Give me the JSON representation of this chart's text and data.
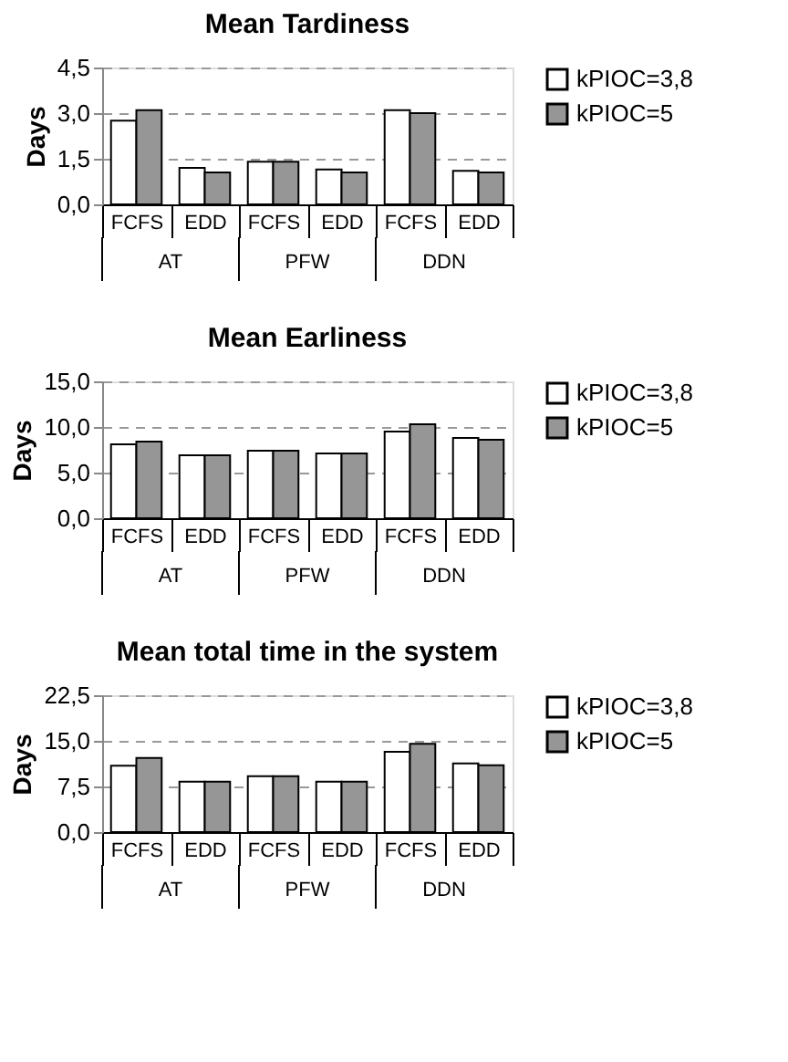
{
  "chart_data": [
    {
      "type": "bar",
      "title": "Mean Tardiness",
      "ylabel": "Days",
      "categories": [
        "FCFS",
        "EDD",
        "FCFS",
        "EDD",
        "FCFS",
        "EDD"
      ],
      "annotations": [
        "AT",
        "PFW",
        "DDN"
      ],
      "ylim": [
        0,
        4.5
      ],
      "yticks": [
        {
          "value": 0,
          "label": "0,0"
        },
        {
          "value": 1.5,
          "label": "1,5"
        },
        {
          "value": 3,
          "label": "3,0"
        },
        {
          "value": 4.5,
          "label": "4,5"
        }
      ],
      "grid": "y",
      "legend": "right",
      "series": [
        {
          "name": "kPIOC=3,8",
          "color": "#ffffff",
          "values": [
            2.75,
            1.2,
            1.4,
            1.15,
            3.1,
            1.1
          ]
        },
        {
          "name": "kPIOC=5",
          "color": "#969696",
          "values": [
            3.1,
            1.05,
            1.4,
            1.05,
            3.0,
            1.05
          ]
        }
      ]
    },
    {
      "type": "bar",
      "title": "Mean Earliness",
      "ylabel": "Days",
      "categories": [
        "FCFS",
        "EDD",
        "FCFS",
        "EDD",
        "FCFS",
        "EDD"
      ],
      "annotations": [
        "AT",
        "PFW",
        "DDN"
      ],
      "ylim": [
        0,
        15
      ],
      "yticks": [
        {
          "value": 0,
          "label": "0,0"
        },
        {
          "value": 5,
          "label": "5,0"
        },
        {
          "value": 10,
          "label": "10,0"
        },
        {
          "value": 15,
          "label": "15,0"
        }
      ],
      "grid": "y",
      "legend": "right",
      "series": [
        {
          "name": "kPIOC=3,8",
          "color": "#ffffff",
          "values": [
            8.1,
            6.9,
            7.4,
            7.1,
            9.5,
            8.8
          ]
        },
        {
          "name": "kPIOC=5",
          "color": "#969696",
          "values": [
            8.4,
            6.9,
            7.4,
            7.1,
            10.3,
            8.6
          ]
        }
      ]
    },
    {
      "type": "bar",
      "title": "Mean total time in the system",
      "ylabel": "Days",
      "categories": [
        "FCFS",
        "EDD",
        "FCFS",
        "EDD",
        "FCFS",
        "EDD"
      ],
      "annotations": [
        "AT",
        "PFW",
        "DDN"
      ],
      "ylim": [
        0,
        22.5
      ],
      "yticks": [
        {
          "value": 0,
          "label": "0,0"
        },
        {
          "value": 7.5,
          "label": "7,5"
        },
        {
          "value": 15,
          "label": "15,0"
        },
        {
          "value": 22.5,
          "label": "22,5"
        }
      ],
      "grid": "y",
      "legend": "right",
      "series": [
        {
          "name": "kPIOC=3,8",
          "color": "#ffffff",
          "values": [
            10.9,
            8.3,
            9.2,
            8.3,
            13.2,
            11.3
          ]
        },
        {
          "name": "kPIOC=5",
          "color": "#969696",
          "values": [
            12.2,
            8.3,
            9.2,
            8.3,
            14.5,
            11.0
          ]
        }
      ]
    }
  ]
}
